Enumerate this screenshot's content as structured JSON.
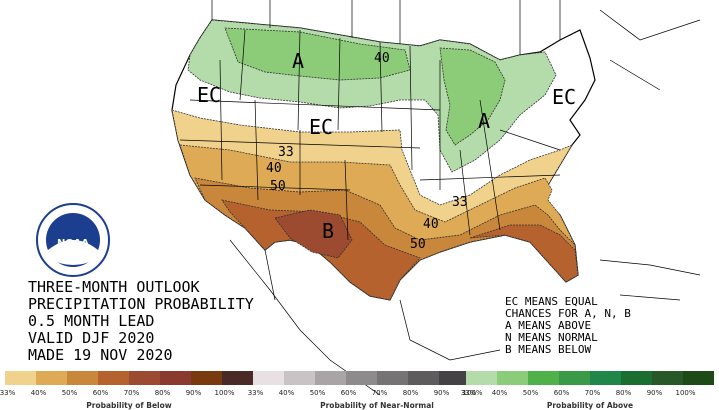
{
  "title_lines": [
    "THREE-MONTH OUTLOOK",
    "PRECIPITATION PROBABILITY",
    "0.5 MONTH LEAD",
    "VALID DJF 2020",
    "MADE 19 NOV 2020"
  ],
  "legend_note_lines": [
    "EC MEANS EQUAL",
    "CHANCES FOR A, N, B",
    "A MEANS ABOVE",
    "N MEANS NORMAL",
    "B MEANS BELOW"
  ],
  "region_labels": {
    "above_north": "A",
    "above_ohio": "A",
    "below_south": "B",
    "ec_west": "EC",
    "ec_central": "EC",
    "ec_east": "EC"
  },
  "contour_labels": {
    "c40_north": "40",
    "c33_plains": "33",
    "c40_plains": "40",
    "c50_plains": "50",
    "c33_east": "33",
    "c40_south": "40",
    "c50_south": "50"
  },
  "logo": {
    "name": "NOAA",
    "ring_text": "NATIONAL OCEANIC AND ATMOSPHERIC ADMINISTRATION",
    "dept_text": "U.S. DEPARTMENT OF COMMERCE"
  },
  "scales": {
    "below": {
      "caption": "Probability of Below",
      "ticks": [
        "33%",
        "40%",
        "50%",
        "60%",
        "70%",
        "80%",
        "90%",
        "100%"
      ],
      "colors": [
        "#f0d28c",
        "#deaa55",
        "#c8873a",
        "#b5622f",
        "#9c4a30",
        "#8b3a30",
        "#7a3a10",
        "#4a2a24"
      ]
    },
    "normal": {
      "caption": "Probability of Near-Normal",
      "ticks": [
        "33%",
        "40%",
        "50%",
        "60%",
        "70%",
        "80%",
        "90%",
        "100%"
      ],
      "colors": [
        "#e8e0e2",
        "#c8c4c6",
        "#a9a5a7",
        "#8e8b8c",
        "#767375",
        "#5e5c5d",
        "#444244",
        "#262526"
      ]
    },
    "above": {
      "caption": "Probability of Above",
      "ticks": [
        "33%",
        "40%",
        "50%",
        "60%",
        "70%",
        "80%",
        "90%",
        "100%"
      ],
      "colors": [
        "#b4dcaa",
        "#8ccc78",
        "#50b04a",
        "#3a9a48",
        "#20864a",
        "#1a6e30",
        "#28582a",
        "#1e4a18"
      ]
    }
  },
  "colors": {
    "above_33": "#b4dcaa",
    "above_40": "#8ccc78",
    "below_33": "#f0d28c",
    "below_40": "#deaa55",
    "below_50": "#c8873a",
    "below_60": "#b5622f",
    "below_70": "#9c4a30"
  }
}
